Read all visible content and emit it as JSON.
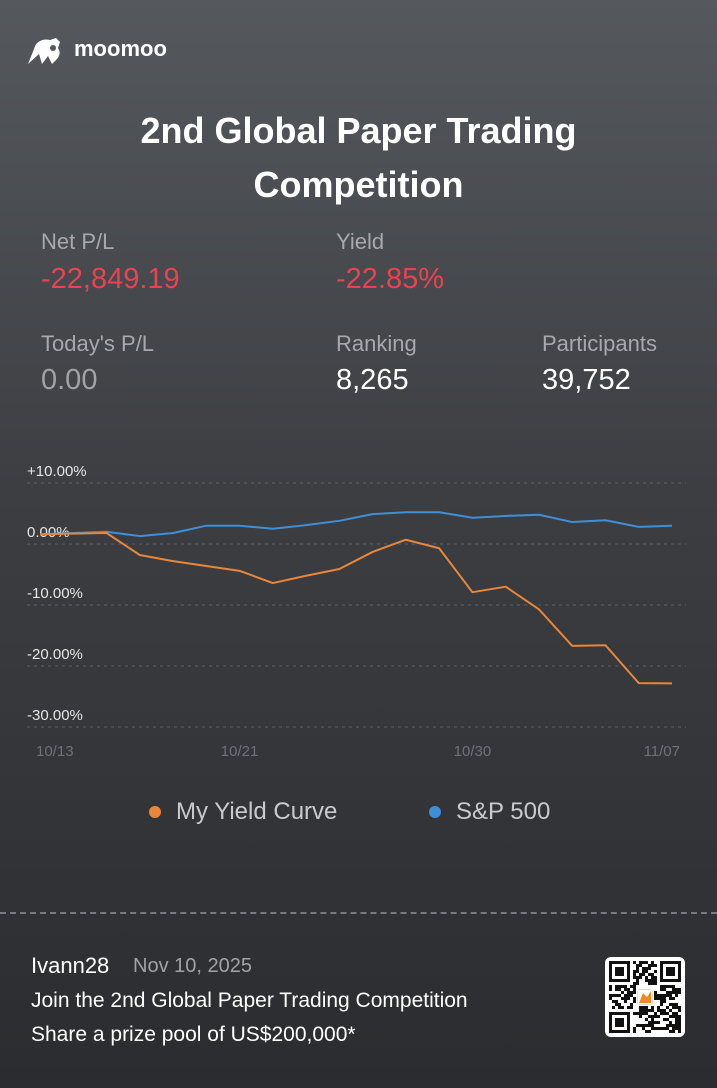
{
  "header": {
    "brand": "moomoo",
    "title": "2nd Global Paper Trading Competition"
  },
  "stats": [
    {
      "label": "Net P/L",
      "value": "-22,849.19"
    },
    {
      "label": "Yield",
      "value": "-22.85%"
    },
    {
      "label": "Today's P/L",
      "value": "0.00"
    },
    {
      "label": "Ranking",
      "value": "8,265"
    },
    {
      "label": "Participants",
      "value": "39,752"
    }
  ],
  "chart_data": {
    "type": "line",
    "categories": [
      "10/13",
      null,
      null,
      null,
      null,
      null,
      "10/21",
      null,
      null,
      null,
      null,
      null,
      null,
      "10/30",
      null,
      null,
      null,
      null,
      null,
      "11/07"
    ],
    "series": [
      {
        "name": "My Yield Curve",
        "color": "#e8873a",
        "values": [
          1.6,
          1.7,
          1.8,
          -1.8,
          -2.8,
          -3.6,
          -4.4,
          -6.4,
          -5.2,
          -4.1,
          -1.3,
          0.7,
          -0.7,
          -7.9,
          -7.0,
          -10.7,
          -16.7,
          -16.6,
          -22.8,
          -22.85
        ]
      },
      {
        "name": "S&P 500",
        "color": "#3f8fd8",
        "values": [
          1.6,
          1.8,
          2.0,
          1.3,
          1.8,
          3.0,
          3.0,
          2.5,
          3.1,
          3.8,
          4.9,
          5.2,
          5.2,
          4.3,
          4.6,
          4.8,
          3.6,
          3.9,
          2.8,
          3.0
        ]
      }
    ],
    "ylim": [
      -30,
      10
    ],
    "yticks": [
      {
        "value": 10,
        "label": "+10.00%"
      },
      {
        "value": 0,
        "label": "0.00%"
      },
      {
        "value": -10,
        "label": "-10.00%"
      },
      {
        "value": -20,
        "label": "-20.00%"
      },
      {
        "value": -30,
        "label": "-30.00%"
      }
    ],
    "grid": true,
    "legend": "bottom"
  },
  "footer": {
    "user": "Ivann28",
    "date": "Nov 10, 2025",
    "line1": "Join the 2nd Global Paper Trading Competition",
    "line2": "Share a prize pool of US$200,000*"
  }
}
